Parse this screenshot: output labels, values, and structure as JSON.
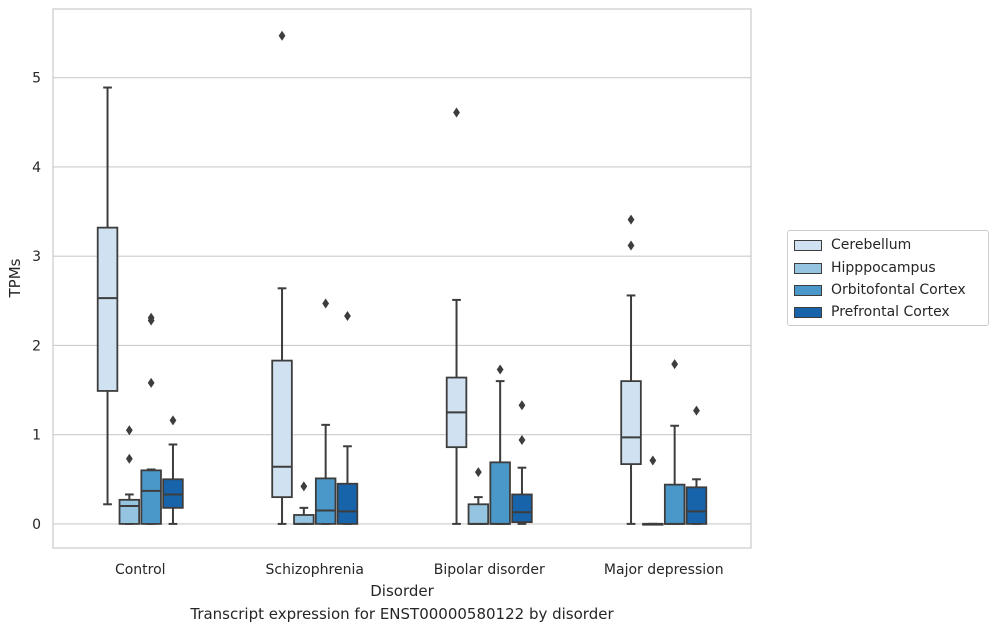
{
  "chart_data": {
    "type": "box",
    "title": "",
    "caption": "Transcript expression for ENST00000580122 by disorder",
    "xlabel": "Disorder",
    "ylabel": "TPMs",
    "ylim": [
      -0.27,
      5.77
    ],
    "yticks": [
      0,
      1,
      2,
      3,
      4,
      5
    ],
    "grid": "horizontal",
    "legend_placement": "right",
    "categories": [
      "Control",
      "Schizophrenia",
      "Bipolar disorder",
      "Major depression"
    ],
    "series": [
      {
        "name": "Cerebellum",
        "color": "#d0e1f2",
        "boxes": [
          {
            "whislo": 0.22,
            "q1": 1.49,
            "med": 2.53,
            "q3": 3.32,
            "whishi": 4.89,
            "fliers": []
          },
          {
            "whislo": 0.0,
            "q1": 0.3,
            "med": 0.64,
            "q3": 1.83,
            "whishi": 2.64,
            "fliers": [
              5.47
            ]
          },
          {
            "whislo": 0.0,
            "q1": 0.86,
            "med": 1.25,
            "q3": 1.64,
            "whishi": 2.51,
            "fliers": [
              4.61
            ]
          },
          {
            "whislo": 0.0,
            "q1": 0.67,
            "med": 0.97,
            "q3": 1.6,
            "whishi": 2.56,
            "fliers": [
              3.12,
              3.41
            ]
          }
        ]
      },
      {
        "name": "Hipppocampus",
        "color": "#94c4df",
        "boxes": [
          {
            "whislo": 0.0,
            "q1": 0.0,
            "med": 0.2,
            "q3": 0.27,
            "whishi": 0.33,
            "fliers": [
              0.73,
              1.05
            ]
          },
          {
            "whislo": 0.0,
            "q1": 0.0,
            "med": 0.0,
            "q3": 0.1,
            "whishi": 0.18,
            "fliers": [
              0.42
            ]
          },
          {
            "whislo": 0.0,
            "q1": 0.0,
            "med": 0.0,
            "q3": 0.22,
            "whishi": 0.3,
            "fliers": [
              0.58
            ]
          },
          {
            "whislo": 0.0,
            "q1": 0.0,
            "med": 0.0,
            "q3": 0.0,
            "whishi": 0.0,
            "fliers": [
              0.71
            ]
          }
        ]
      },
      {
        "name": "Orbitofontal Cortex",
        "color": "#4a98c9",
        "boxes": [
          {
            "whislo": 0.0,
            "q1": 0.0,
            "med": 0.37,
            "q3": 0.6,
            "whishi": 0.61,
            "fliers": [
              1.58,
              2.28,
              2.31
            ]
          },
          {
            "whislo": 0.0,
            "q1": 0.0,
            "med": 0.15,
            "q3": 0.51,
            "whishi": 1.11,
            "fliers": [
              2.47
            ]
          },
          {
            "whislo": 0.0,
            "q1": 0.0,
            "med": 0.0,
            "q3": 0.69,
            "whishi": 1.6,
            "fliers": [
              1.73
            ]
          },
          {
            "whislo": 0.0,
            "q1": 0.0,
            "med": 0.0,
            "q3": 0.44,
            "whishi": 1.1,
            "fliers": [
              1.79
            ]
          }
        ]
      },
      {
        "name": "Prefrontal Cortex",
        "color": "#1764ab",
        "boxes": [
          {
            "whislo": 0.0,
            "q1": 0.18,
            "med": 0.33,
            "q3": 0.5,
            "whishi": 0.89,
            "fliers": [
              1.16
            ]
          },
          {
            "whislo": 0.0,
            "q1": 0.0,
            "med": 0.14,
            "q3": 0.45,
            "whishi": 0.87,
            "fliers": [
              2.33
            ]
          },
          {
            "whislo": 0.0,
            "q1": 0.02,
            "med": 0.13,
            "q3": 0.33,
            "whishi": 0.63,
            "fliers": [
              0.94,
              1.33
            ]
          },
          {
            "whislo": 0.0,
            "q1": 0.0,
            "med": 0.14,
            "q3": 0.41,
            "whishi": 0.5,
            "fliers": [
              1.27
            ]
          }
        ]
      }
    ]
  }
}
